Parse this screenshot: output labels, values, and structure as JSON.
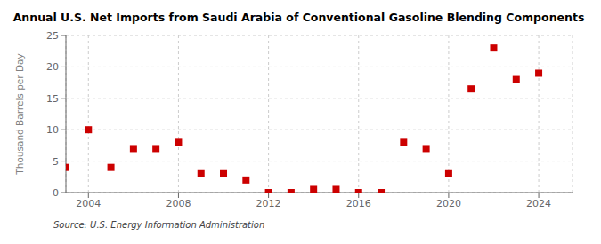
{
  "chart_data": {
    "type": "scatter",
    "title": "Annual U.S. Net Imports from Saudi Arabia of Conventional Gasoline Blending Components",
    "y_label": "Thousand Barrels per Day",
    "source": "Source: U.S. Energy Information Administration",
    "x": [
      2003,
      2004,
      2005,
      2006,
      2007,
      2008,
      2009,
      2010,
      2011,
      2012,
      2013,
      2014,
      2015,
      2016,
      2017,
      2018,
      2019,
      2020,
      2021,
      2022,
      2023,
      2024
    ],
    "values": [
      4.0,
      10.0,
      4.0,
      7.0,
      7.0,
      8.0,
      3.0,
      3.0,
      2.0,
      0.0,
      0.0,
      0.5,
      0.5,
      0.0,
      0.0,
      8.0,
      7.0,
      3.0,
      16.5,
      23.0,
      18.0,
      19.0
    ],
    "color": "#cc0000",
    "marker": "square",
    "xlim": [
      2003.0,
      2025.5
    ],
    "xticks": [
      2004,
      2008,
      2012,
      2016,
      2020,
      2024
    ],
    "ylim": [
      0,
      25
    ],
    "yticks": [
      0,
      5,
      10,
      15,
      20,
      25
    ],
    "grid": true
  }
}
